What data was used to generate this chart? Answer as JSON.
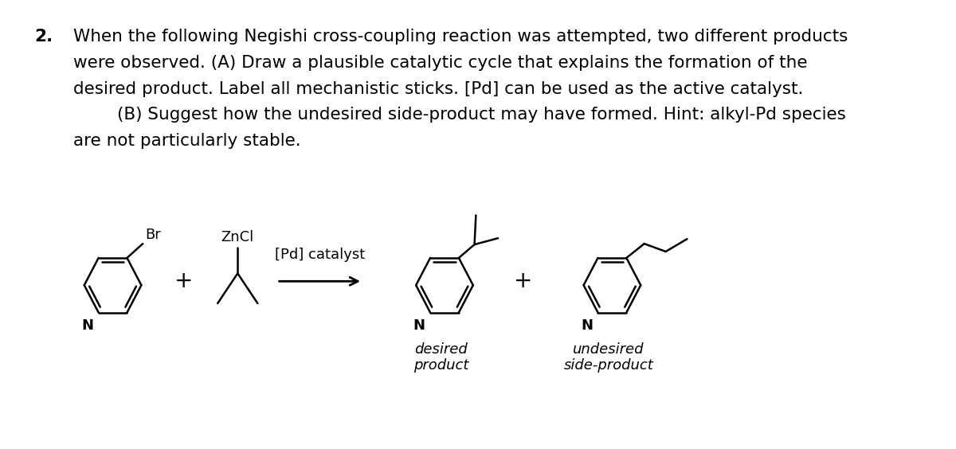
{
  "background_color": "#ffffff",
  "text_color": "#000000",
  "question_number": "2.",
  "question_text_line1": "When the following Negishi cross-coupling reaction was attempted, two different products",
  "question_text_line2": "were observed. (A) Draw a plausible catalytic cycle that explains the formation of the",
  "question_text_line3": "desired product. Label all mechanistic sticks. [Pd] can be used as the active catalyst.",
  "question_text_line4": "        (B) Suggest how the undesired side-product may have formed. Hint: alkyl-Pd species",
  "question_text_line5": "are not particularly stable.",
  "label_znci": "ZnCl",
  "label_pd": "[Pd] catalyst",
  "label_desired": "desired\nproduct",
  "label_undesired": "undesired\nside-product",
  "label_br": "Br",
  "label_n": "N",
  "font_size_text": 15.5,
  "font_size_chem": 13,
  "font_size_italic": 13
}
